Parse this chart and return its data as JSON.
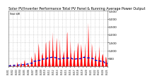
{
  "title": "Solar PV/Inverter Performance Total PV Panel & Running Average Power Output",
  "legend_line1": "Total kW",
  "ylim": [
    0,
    3500
  ],
  "yticks": [
    500,
    1000,
    1500,
    2000,
    2500,
    3000,
    3500
  ],
  "ytick_labels": [
    "500",
    "1,000",
    "1,500",
    "2,000",
    "2,500",
    "3,000",
    "3,500"
  ],
  "bg_color": "#ffffff",
  "plot_bg": "#ffffff",
  "grid_color": "#bbbbbb",
  "bar_color": "#ff0000",
  "avg_color": "#0000cc",
  "n_points": 280,
  "n_days": 28,
  "title_fontsize": 3.5,
  "tick_fontsize": 3.0
}
